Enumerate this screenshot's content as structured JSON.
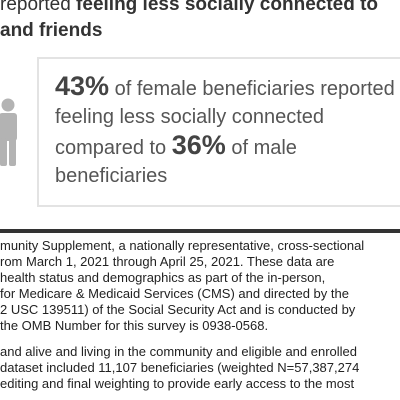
{
  "heading": {
    "line1_prefix": "reported ",
    "line1_bold": "feeling less socially connected to",
    "line2": "and friends"
  },
  "stat": {
    "female_pct": "43%",
    "line1_rest": " of female beneficiaries reported",
    "line2": "feeling less socially connected",
    "line3_prefix": "compared to ",
    "male_pct": "36%",
    "line3_rest": " of male",
    "line4": "beneficiaries"
  },
  "icons": {
    "person": "person-icon"
  },
  "body": {
    "paragraph1": [
      "munity Supplement, a nationally representative, cross-sectional",
      "rom March 1, 2021 through April 25, 2021. These data are",
      "health status and demographics as part of the in-person,",
      "for Medicare & Medicaid Services (CMS) and directed by the",
      "2 USC 139511) of the Social Security Act and is conducted by",
      "the OMB Number for this survey is 0938-0568."
    ],
    "paragraph2": [
      "and alive and living in the community and eligible and enrolled",
      "dataset included 11,107 beneficiaries (weighted N=57,387,274",
      "editing and final weighting to provide early access to the most"
    ]
  },
  "colors": {
    "text": "#333333",
    "box_border": "#e3e3e3",
    "icon": "#b3b3b3",
    "divider": "#333333"
  }
}
